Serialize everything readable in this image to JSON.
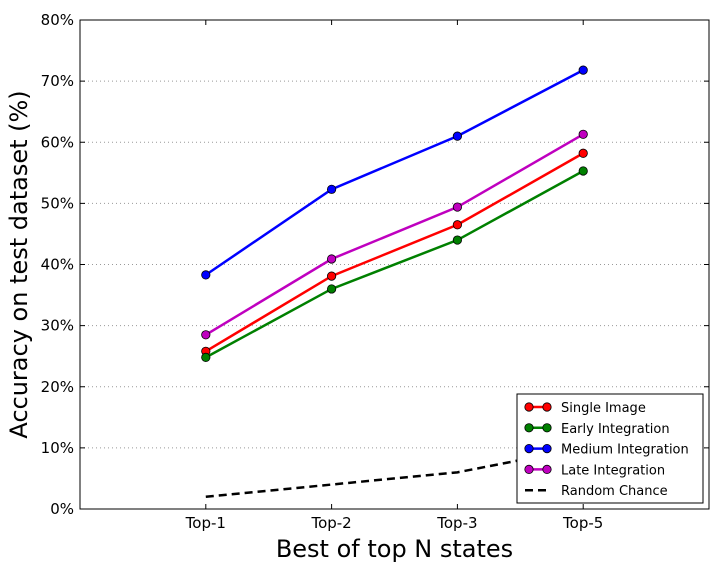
{
  "chart_data": {
    "type": "line",
    "title": "",
    "xlabel": "Best of top N states",
    "ylabel": "Accuracy on test dataset (%)",
    "categories": [
      "Top-1",
      "Top-2",
      "Top-3",
      "Top-5"
    ],
    "ylim": [
      0,
      80
    ],
    "yticks": [
      "0%",
      "10%",
      "20%",
      "30%",
      "40%",
      "50%",
      "60%",
      "70%",
      "80%"
    ],
    "grid": "horizontal dotted",
    "legend_position": "bottom-right",
    "series": [
      {
        "name": "Single Image",
        "color": "#ff0000",
        "values": [
          25.8,
          38.1,
          46.5,
          58.2
        ],
        "dashed": false,
        "markers": true
      },
      {
        "name": "Early Integration",
        "color": "#008000",
        "values": [
          24.8,
          36.0,
          44.0,
          55.3
        ],
        "dashed": false,
        "markers": true
      },
      {
        "name": "Medium Integration",
        "color": "#0000ff",
        "values": [
          38.3,
          52.3,
          61.0,
          71.8
        ],
        "dashed": false,
        "markers": true
      },
      {
        "name": "Late Integration",
        "color": "#bf00bf",
        "values": [
          28.5,
          40.9,
          49.4,
          61.3
        ],
        "dashed": false,
        "markers": true
      },
      {
        "name": "Random Chance",
        "color": "#000000",
        "values": [
          2.0,
          4.0,
          6.0,
          10.0
        ],
        "dashed": true,
        "markers": false
      }
    ]
  }
}
